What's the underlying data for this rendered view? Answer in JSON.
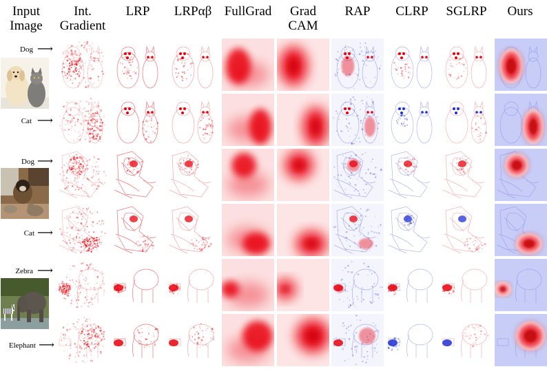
{
  "figure": {
    "column_headers": [
      {
        "key": "input",
        "label": "Input\nImage"
      },
      {
        "key": "ig",
        "label": "Int.\nGradient"
      },
      {
        "key": "lrp",
        "label": "LRP"
      },
      {
        "key": "lrpab",
        "label": "LRPαβ"
      },
      {
        "key": "fullgrad",
        "label": "FullGrad"
      },
      {
        "key": "gradcam",
        "label": "Grad\nCAM"
      },
      {
        "key": "rap",
        "label": "RAP"
      },
      {
        "key": "clrp",
        "label": "CLRP"
      },
      {
        "key": "sglrp",
        "label": "SGLRP"
      },
      {
        "key": "ours",
        "label": "Ours"
      }
    ],
    "row_labels": [
      "Dog",
      "Cat",
      "Dog",
      "Cat",
      "Zebra",
      "Elephant"
    ],
    "arrow_glyph": "⟶",
    "input_images": [
      {
        "scene": "dog-and-cat",
        "rows": [
          0,
          1
        ]
      },
      {
        "scene": "dog-and-cat-indoor",
        "rows": [
          2,
          3
        ]
      },
      {
        "scene": "zebra-and-elephant",
        "rows": [
          4,
          5
        ]
      }
    ],
    "colors": {
      "positive": "#e8000b",
      "negative": "#1f2fd6",
      "background": "#ffffff"
    }
  }
}
